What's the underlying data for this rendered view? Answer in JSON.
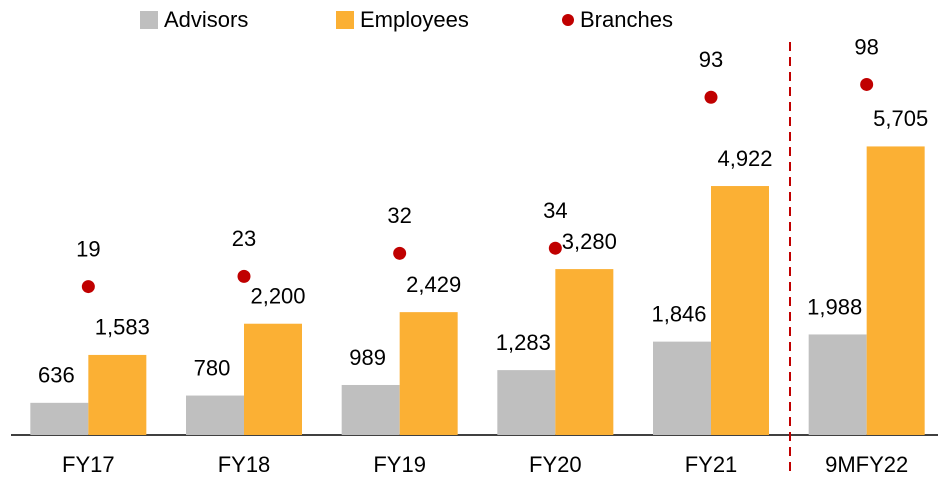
{
  "chart_data": {
    "type": "bar",
    "categories": [
      "FY17",
      "FY18",
      "FY19",
      "FY20",
      "FY21",
      "9MFY22"
    ],
    "series": [
      {
        "name": "Advisors",
        "color": "#bfbfbf",
        "values": [
          636,
          780,
          989,
          1283,
          1846,
          1988
        ],
        "value_labels": [
          "636",
          "780",
          "989",
          "1,283",
          "1,846",
          "1,988"
        ]
      },
      {
        "name": "Employees",
        "color": "#fbb034",
        "values": [
          1583,
          2200,
          2429,
          3280,
          4922,
          5705
        ],
        "value_labels": [
          "1,583",
          "2,200",
          "2,429",
          "3,280",
          "4,922",
          "5,705"
        ]
      },
      {
        "name": "Branches",
        "color": "#c00000",
        "type": "scatter",
        "axis": "y2",
        "values": [
          19,
          23,
          32,
          34,
          93,
          98
        ]
      }
    ],
    "ylim": [
      0,
      8600
    ],
    "y2lim": [
      -39,
      131
    ],
    "legend": "top"
  }
}
